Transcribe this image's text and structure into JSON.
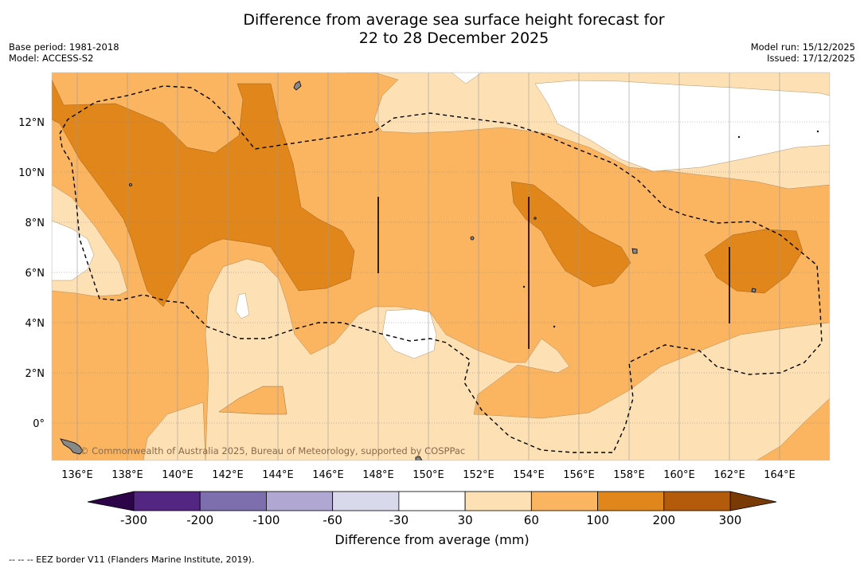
{
  "title": {
    "line1": "Difference from average sea surface height forecast for",
    "line2": "22 to 28 December 2025"
  },
  "meta": {
    "base_period": "Base period: 1981-2018",
    "model": "Model: ACCESS-S2",
    "model_run": "Model run: 15/12/2025",
    "issued": "Issued: 17/12/2025"
  },
  "map": {
    "lat_labels": [
      "12°N",
      "10°N",
      "8°N",
      "6°N",
      "4°N",
      "2°N",
      "0°"
    ],
    "lon_labels": [
      "136°E",
      "138°E",
      "140°E",
      "142°E",
      "144°E",
      "146°E",
      "148°E",
      "150°E",
      "152°E",
      "154°E",
      "156°E",
      "158°E",
      "160°E",
      "162°E",
      "164°E"
    ],
    "credit": "© Commonwealth of Australia 2025, Bureau of Meteorology, supported by COSPPac"
  },
  "colorbar": {
    "title": "Difference from average (mm)",
    "ticks": [
      "-300",
      "-200",
      "-100",
      "-60",
      "-30",
      "30",
      "60",
      "100",
      "200",
      "300"
    ],
    "colors": [
      "#532683",
      "#7d6eae",
      "#b0a8d2",
      "#d9d9ec",
      "#ffffff",
      "#fee0b5",
      "#fbb561",
      "#e0861a",
      "#b35a0b"
    ],
    "extend_low_color": "#2c0447",
    "extend_high_color": "#7a3a06"
  },
  "footnote": "--  --  -- EEZ border V11 (Flanders Marine Institute, 2019).",
  "colors": {
    "level_30_60": "#fee0b5",
    "level_60_100": "#fbb561",
    "level_100_200": "#e0861a"
  }
}
